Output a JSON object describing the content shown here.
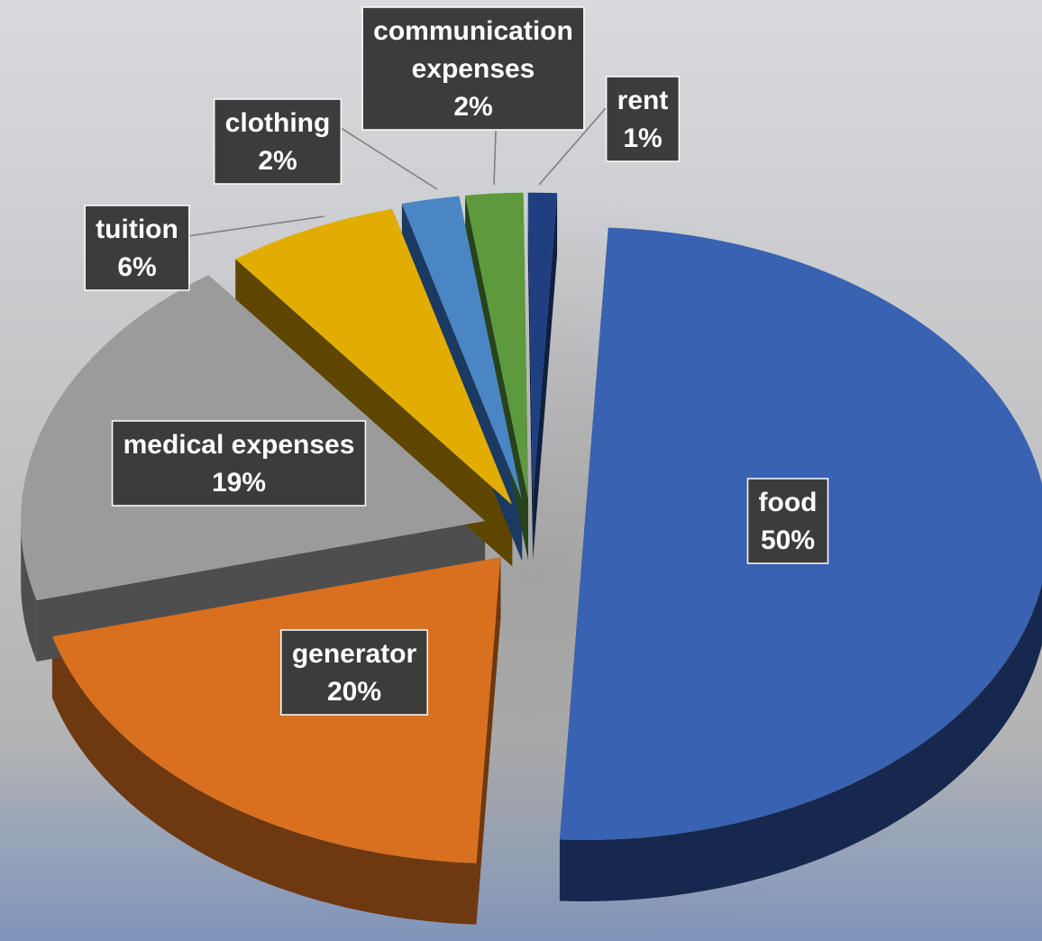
{
  "chart_data": {
    "type": "pie",
    "style": "3d-exploded",
    "categories": [
      "food",
      "generator",
      "medical expenses",
      "tuition",
      "clothing",
      "communication expenses",
      "rent"
    ],
    "values": [
      50,
      20,
      19,
      6,
      2,
      2,
      1
    ],
    "unit": "%",
    "slices": [
      {
        "label_lines": [
          "food"
        ],
        "value_text": "50%",
        "value": 50,
        "color": "#3a62b2",
        "side_color": "#16284d"
      },
      {
        "label_lines": [
          "generator"
        ],
        "value_text": "20%",
        "value": 20,
        "color": "#d8701f",
        "side_color": "#6e3810"
      },
      {
        "label_lines": [
          "medical expenses"
        ],
        "value_text": "19%",
        "value": 19,
        "color": "#9b9b9b",
        "side_color": "#4e4e4e"
      },
      {
        "label_lines": [
          "tuition"
        ],
        "value_text": "6%",
        "value": 6,
        "color": "#e2ad02",
        "side_color": "#5e4600"
      },
      {
        "label_lines": [
          "clothing"
        ],
        "value_text": "2%",
        "value": 2,
        "color": "#4a86c3",
        "side_color": "#1b3a62"
      },
      {
        "label_lines": [
          "communication",
          "expenses"
        ],
        "value_text": "2%",
        "value": 2,
        "color": "#5c9a3d",
        "side_color": "#28431b"
      },
      {
        "label_lines": [
          "rent"
        ],
        "value_text": "1%",
        "value": 1,
        "color": "#1f3f80",
        "side_color": "#0f1f3f"
      }
    ],
    "legend": "none",
    "data_labels": "category-and-percent",
    "background": {
      "top": "#d9dadf",
      "middle": "#b4b4b4",
      "bottom": "#7f95bc"
    }
  }
}
